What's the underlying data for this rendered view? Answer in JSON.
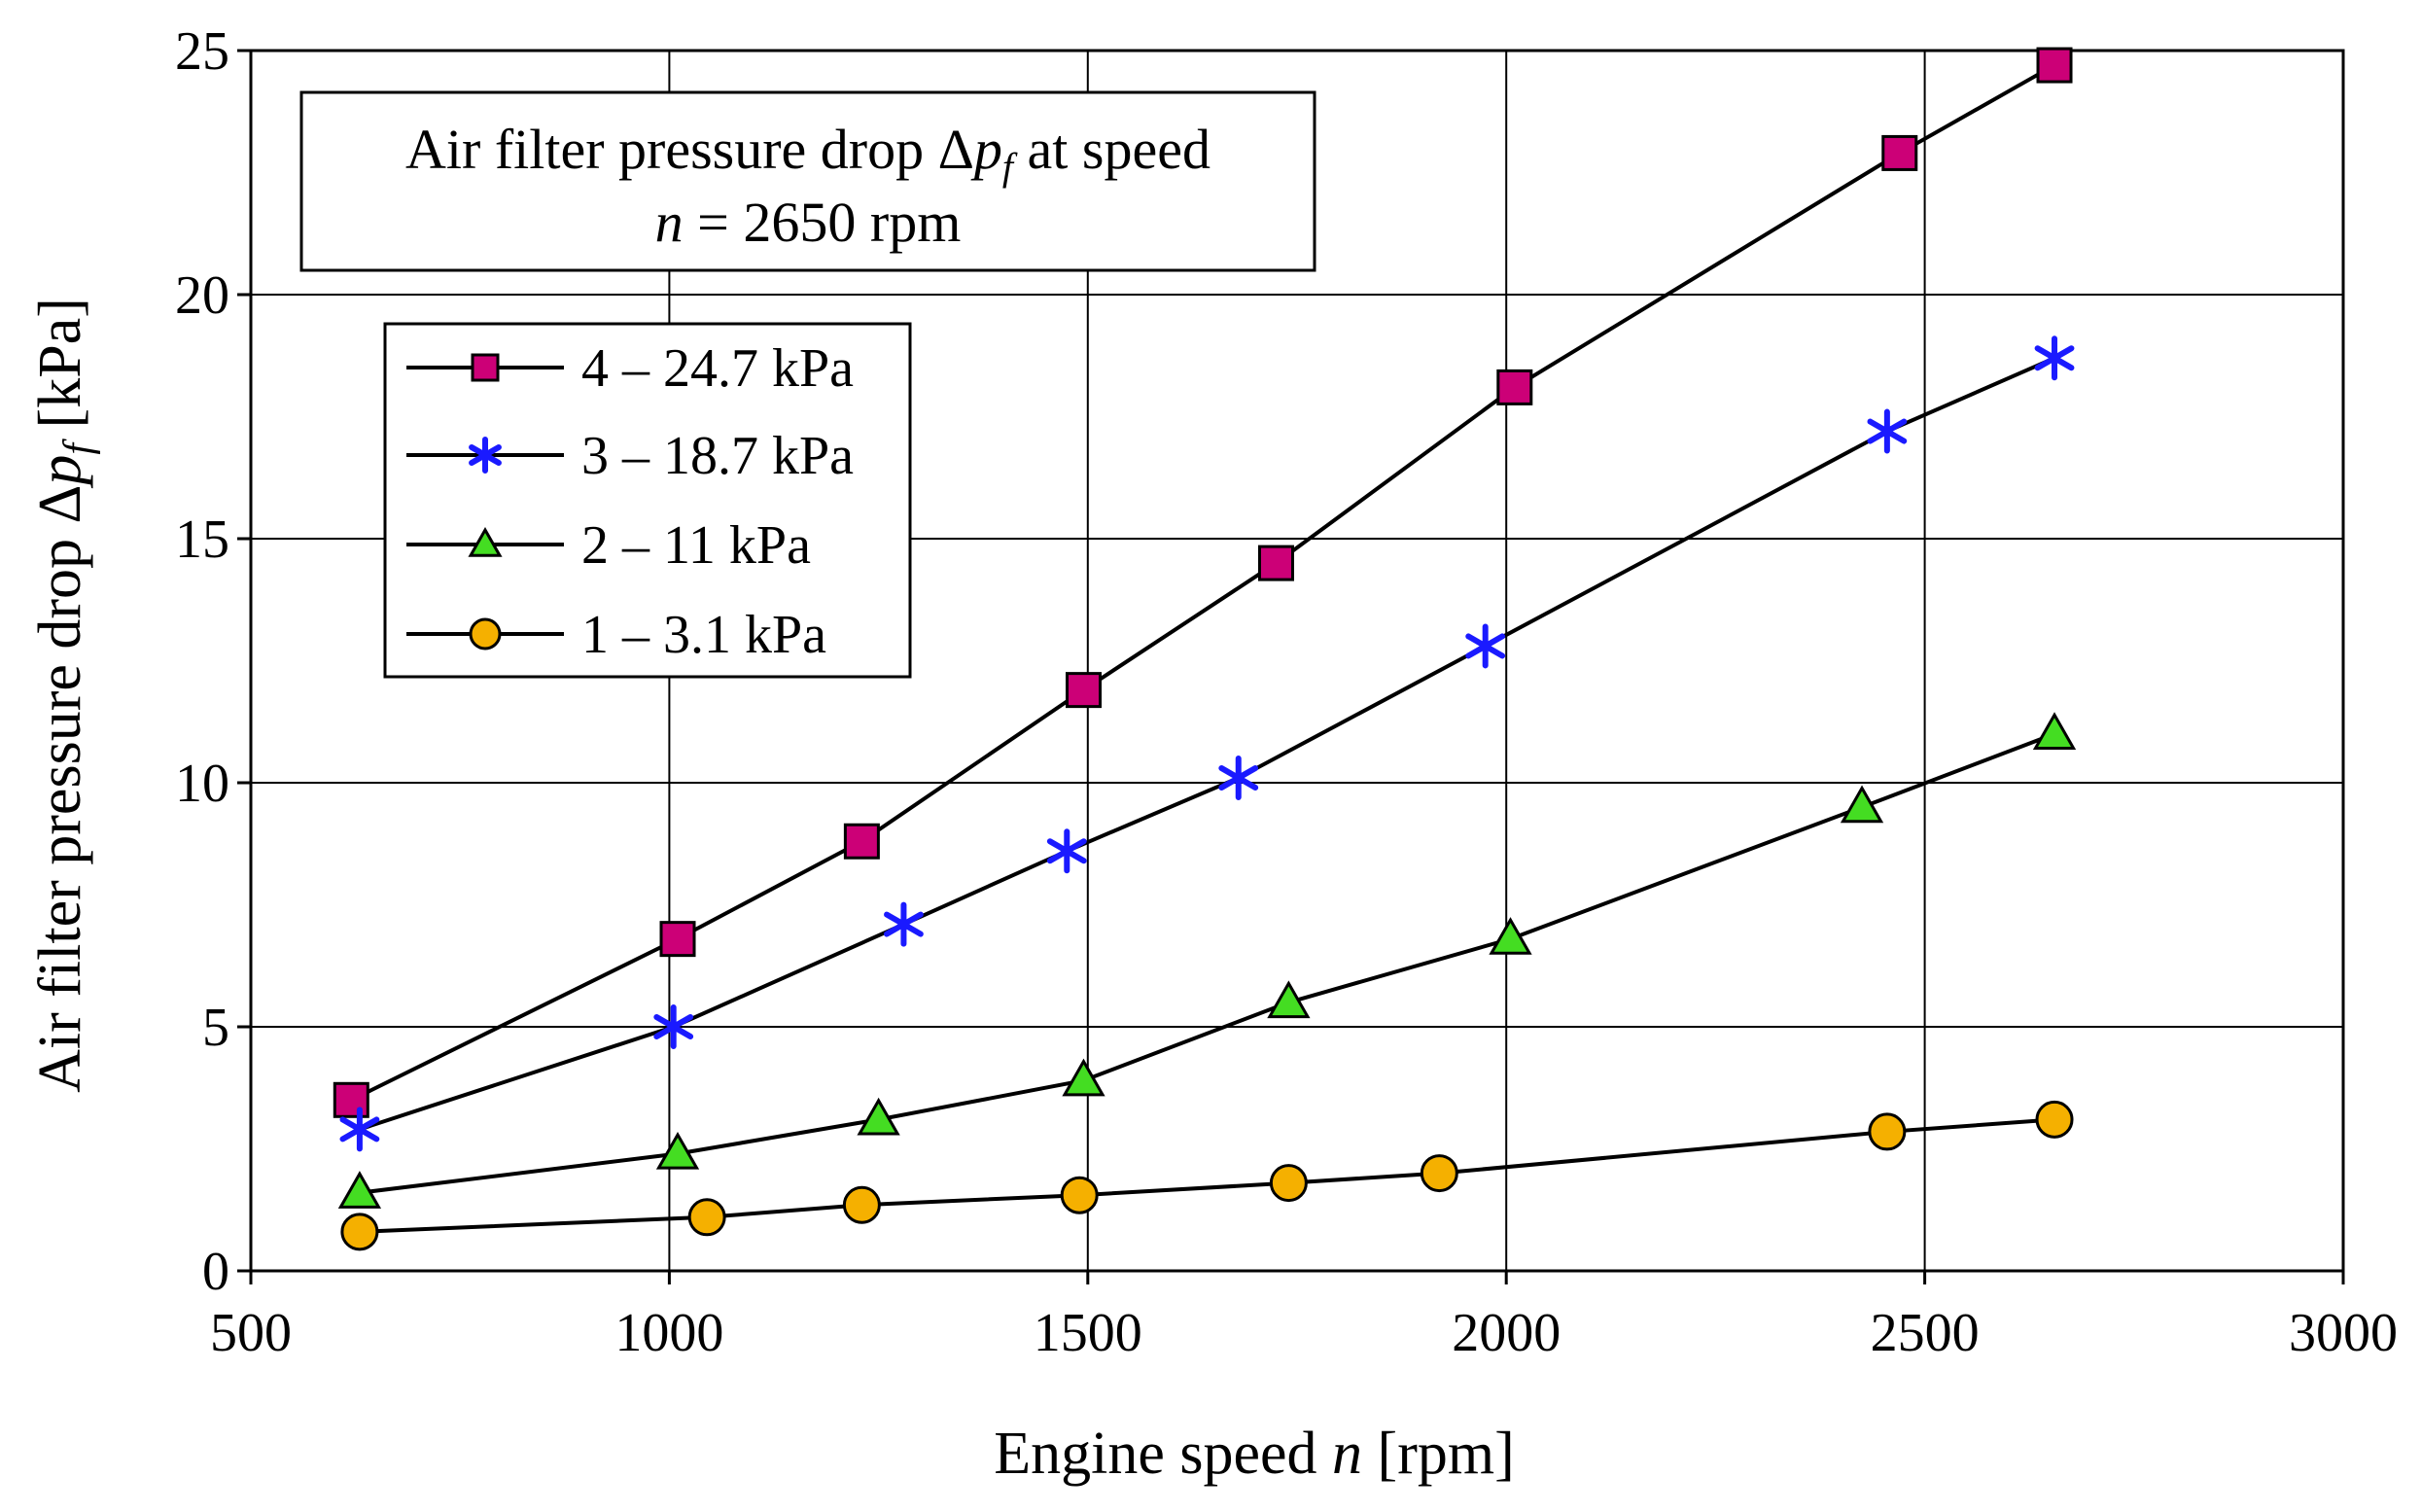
{
  "chart_data": {
    "type": "line",
    "title": "",
    "xlabel_prefix": "Engine speed ",
    "xlabel_var": "n",
    "xlabel_suffix": " [rpm]",
    "ylabel_prefix": "Air filter pressure drop Δ",
    "ylabel_var": "p",
    "ylabel_sub": "f",
    "ylabel_suffix": " [kPa]",
    "xlim": [
      500,
      3000
    ],
    "ylim": [
      0,
      25
    ],
    "xticks": [
      500,
      1000,
      1500,
      2000,
      2500,
      3000
    ],
    "yticks": [
      0,
      5,
      10,
      15,
      20,
      25
    ],
    "grid": true,
    "legend_position": "upper-left",
    "annotation": {
      "line1_prefix": "Air filter pressure drop Δ",
      "line1_var": "p",
      "line1_sub": "f",
      "line1_suffix": " at speed",
      "line2_var": "n",
      "line2_suffix": " = 2650 rpm"
    },
    "series": [
      {
        "name": "4 – 24.7 kPa",
        "marker": "square",
        "color": "#cc0077",
        "x": [
          620,
          1010,
          1230,
          1495,
          1725,
          2010,
          2470,
          2655
        ],
        "y": [
          3.5,
          6.8,
          8.8,
          11.9,
          14.5,
          18.1,
          22.9,
          24.7
        ]
      },
      {
        "name": "3 – 18.7 kPa",
        "marker": "asterisk",
        "color": "#1a1aff",
        "x": [
          630,
          1005,
          1280,
          1475,
          1680,
          1975,
          2455,
          2655
        ],
        "y": [
          2.9,
          5.0,
          7.1,
          8.6,
          10.1,
          12.8,
          17.2,
          18.7
        ]
      },
      {
        "name": "2 – 11 kPa",
        "marker": "triangle",
        "color": "#44dd22",
        "x": [
          630,
          1010,
          1250,
          1495,
          1740,
          2005,
          2425,
          2655
        ],
        "y": [
          1.6,
          2.4,
          3.1,
          3.9,
          5.5,
          6.8,
          9.5,
          11.0
        ]
      },
      {
        "name": "1 – 3.1 kPa",
        "marker": "circle",
        "color": "#f5b000",
        "x": [
          630,
          1045,
          1230,
          1490,
          1740,
          1920,
          2455,
          2655
        ],
        "y": [
          0.8,
          1.1,
          1.35,
          1.55,
          1.8,
          2.0,
          2.85,
          3.1
        ]
      }
    ]
  }
}
